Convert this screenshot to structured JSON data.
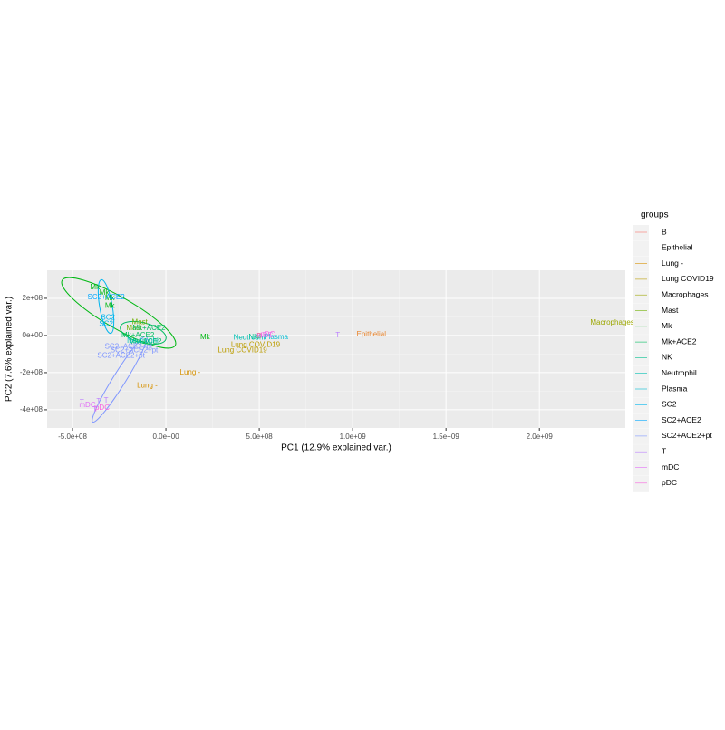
{
  "chart_data": {
    "type": "scatter",
    "x_label": "PC1 (12.9% explained var.)",
    "y_label": "PC2 (7.6% explained var.)",
    "legend_title": "groups",
    "legend": "right",
    "grid": true,
    "xlim": [
      -636000000,
      2460000000
    ],
    "ylim": [
      -498000000,
      351000000
    ],
    "xticks": [
      {
        "value": -500000000,
        "label": "-5.0e+08"
      },
      {
        "value": 0,
        "label": "0.0e+00"
      },
      {
        "value": 500000000,
        "label": "5.0e+08"
      },
      {
        "value": 1000000000,
        "label": "1.0e+09"
      },
      {
        "value": 1500000000,
        "label": "1.5e+09"
      },
      {
        "value": 2000000000,
        "label": "2.0e+09"
      }
    ],
    "yticks": [
      {
        "value": 200000000,
        "label": "2e+08"
      },
      {
        "value": 0,
        "label": "0e+00"
      },
      {
        "value": -200000000,
        "label": "-2e+08"
      },
      {
        "value": -400000000,
        "label": "-4e+08"
      }
    ],
    "series": [
      {
        "name": "B",
        "color": "#F8766D",
        "x": [
          500000000
        ],
        "y": [
          -5000000
        ]
      },
      {
        "name": "Epithelial",
        "color": "#E9842C",
        "x": [
          1100000000
        ],
        "y": [
          5000000
        ]
      },
      {
        "name": "Lung -",
        "color": "#D69100",
        "x": [
          130000000,
          -100000000
        ],
        "y": [
          -200000000,
          -270000000
        ]
      },
      {
        "name": "Lung COVID19",
        "color": "#BC9D00",
        "x": [
          480000000,
          410000000
        ],
        "y": [
          -50000000,
          -80000000
        ]
      },
      {
        "name": "Macrophages",
        "color": "#9CA700",
        "x": [
          2390000000
        ],
        "y": [
          68000000
        ]
      },
      {
        "name": "Mast",
        "color": "#6FB000",
        "x": [
          -140000000,
          -170000000
        ],
        "y": [
          70000000,
          40000000
        ]
      },
      {
        "name": "Mk",
        "color": "#00B813",
        "x": [
          210000000,
          -380000000,
          -300000000,
          -300000000,
          -330000000
        ],
        "y": [
          -10000000,
          260000000,
          200000000,
          160000000,
          230000000
        ]
      },
      {
        "name": "Mk+ACE2",
        "color": "#00BD61",
        "x": [
          -90000000,
          -110000000,
          -150000000
        ],
        "y": [
          40000000,
          -35000000,
          0
        ]
      },
      {
        "name": "NK",
        "color": "#00C08E",
        "x": [
          470000000
        ],
        "y": [
          -10000000
        ]
      },
      {
        "name": "Neutrophil",
        "color": "#00C0B4",
        "x": [
          450000000,
          -120000000
        ],
        "y": [
          -12000000,
          -30000000
        ]
      },
      {
        "name": "Plasma",
        "color": "#00BDD4",
        "x": [
          590000000
        ],
        "y": [
          -10000000
        ]
      },
      {
        "name": "SC2",
        "color": "#00B5EE",
        "x": [
          -320000000,
          -310000000
        ],
        "y": [
          60000000,
          95000000
        ]
      },
      {
        "name": "SC2+ACE2",
        "color": "#00A7FF",
        "x": [
          -320000000
        ],
        "y": [
          205000000
        ]
      },
      {
        "name": "SC2+ACE2+pt",
        "color": "#7F96FF",
        "x": [
          -240000000,
          -200000000,
          -170000000
        ],
        "y": [
          -110000000,
          -60000000,
          -80000000
        ]
      },
      {
        "name": "T",
        "color": "#BC81FF",
        "x": [
          920000000,
          -450000000,
          -360000000,
          -380000000,
          -320000000
        ],
        "y": [
          0,
          -360000000,
          -355000000,
          -400000000,
          -350000000
        ]
      },
      {
        "name": "mDC",
        "color": "#E26EF7",
        "x": [
          530000000,
          -420000000
        ],
        "y": [
          0,
          -375000000
        ]
      },
      {
        "name": "pDC",
        "color": "#F863DF",
        "x": [
          545000000,
          -340000000
        ],
        "y": [
          5000000,
          -390000000
        ]
      }
    ]
  }
}
